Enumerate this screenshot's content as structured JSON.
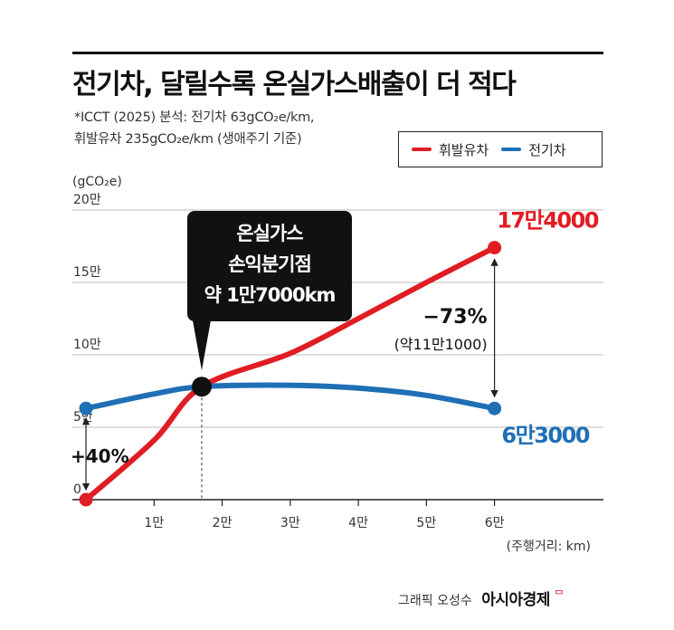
{
  "title": "전기차, 달릴수록 온실가스배출이 더 적다",
  "notes": [
    "*ICCT (2025) 분석: 전기차 63gCO₂e/km,",
    "휘발유차 235gCO₂e/km (생애주기 기준)"
  ],
  "legend": [
    {
      "label": "휘발유차",
      "color": "#e11d24"
    },
    {
      "label": "전기차",
      "color": "#1f6fb5"
    }
  ],
  "chart_data": {
    "type": "line",
    "ylabel": "(gCO₂e)",
    "xlabel": "(주행거리: km)",
    "x_ticks": [
      10000,
      20000,
      30000,
      40000,
      50000,
      60000
    ],
    "x_tick_labels": [
      "1만",
      "2만",
      "3만",
      "4만",
      "5만",
      "6만"
    ],
    "y_ticks": [
      0,
      50000,
      100000,
      150000,
      200000
    ],
    "y_tick_labels": [
      "0",
      "5만",
      "10만",
      "15만",
      "20만"
    ],
    "xlim": [
      -2000,
      76000
    ],
    "ylim": [
      0,
      200000
    ],
    "grid": true,
    "series": [
      {
        "name": "휘발유차",
        "color": "#e11d24",
        "x": [
          0,
          10000,
          17000,
          30000,
          40000,
          50000,
          60000
        ],
        "y": [
          0,
          41000,
          78000,
          101000,
          125000,
          150000,
          174000
        ]
      },
      {
        "name": "전기차",
        "color": "#1f6fb5",
        "x": [
          0,
          10000,
          17000,
          30000,
          40000,
          50000,
          60000
        ],
        "y": [
          63000,
          73000,
          78000,
          79000,
          77000,
          72000,
          63000
        ]
      }
    ],
    "end_labels": [
      {
        "text": "17만4000",
        "color": "#e11d24"
      },
      {
        "text": "6만3000",
        "color": "#1f6fb5"
      }
    ],
    "callout": {
      "lines": [
        "온실가스",
        "손익분기점",
        "약 1만7000km"
      ]
    },
    "diff_labels": {
      "right_pct": "−73%",
      "right_abs": "(약11만1000)",
      "left_pct": "+40%"
    }
  },
  "credit": {
    "text": "그래픽 오성수",
    "brand": "아시아경제",
    "mark": "ᄆ"
  }
}
